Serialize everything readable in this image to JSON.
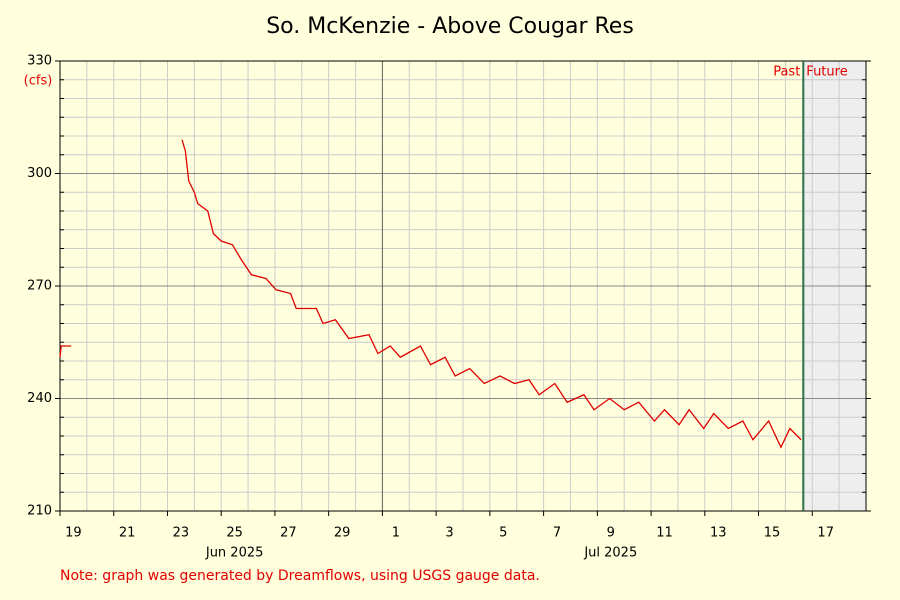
{
  "chart_data": {
    "type": "line",
    "title": "So. McKenzie - Above Cougar Res",
    "y_label": "(cfs)",
    "note": "Note: graph was generated by Dreamflows, using USGS gauge data.",
    "annotation_past": "Past",
    "annotation_future": "Future",
    "now": "2025-07-16T16:00",
    "xlim": [
      "2025-06-19T00:00",
      "2025-07-19T00:00"
    ],
    "xticks": [
      {
        "value": "2025-06-19",
        "label": "19"
      },
      {
        "value": "2025-06-21",
        "label": "21"
      },
      {
        "value": "2025-06-23",
        "label": "23"
      },
      {
        "value": "2025-06-25",
        "label": "25"
      },
      {
        "value": "2025-06-27",
        "label": "27"
      },
      {
        "value": "2025-06-29",
        "label": "29"
      },
      {
        "value": "2025-07-01",
        "label": "1"
      },
      {
        "value": "2025-07-03",
        "label": "3"
      },
      {
        "value": "2025-07-05",
        "label": "5"
      },
      {
        "value": "2025-07-07",
        "label": "7"
      },
      {
        "value": "2025-07-09",
        "label": "9"
      },
      {
        "value": "2025-07-11",
        "label": "11"
      },
      {
        "value": "2025-07-13",
        "label": "13"
      },
      {
        "value": "2025-07-15",
        "label": "15"
      },
      {
        "value": "2025-07-17",
        "label": "17"
      }
    ],
    "month_labels": [
      {
        "value": "2025-06-25",
        "label": "Jun 2025"
      },
      {
        "value": "2025-07-09",
        "label": "Jul 2025"
      }
    ],
    "ylim": [
      210,
      330
    ],
    "yticks": [
      210,
      240,
      270,
      300,
      330
    ],
    "grid": true,
    "series": [
      {
        "name": "Flow",
        "color": "#e00000",
        "x": [
          "2025-06-19T00:00",
          "2025-06-19T01:00",
          "2025-06-19T10:00",
          "2025-06-23T12:00",
          "2025-06-23T13:00",
          "2025-06-23T16:00",
          "2025-06-23T19:00",
          "2025-06-24T00:00",
          "2025-06-24T03:00",
          "2025-06-24T12:00",
          "2025-06-24T17:00",
          "2025-06-25T00:00",
          "2025-06-25T10:00",
          "2025-06-25T18:00",
          "2025-06-26T03:00",
          "2025-06-26T16:00",
          "2025-06-27T01:00",
          "2025-06-27T14:00",
          "2025-06-27T19:00",
          "2025-06-28T13:00",
          "2025-06-28T19:00",
          "2025-06-29T06:00",
          "2025-06-29T18:00",
          "2025-06-30T12:00",
          "2025-06-30T20:00",
          "2025-07-01T07:00",
          "2025-07-01T16:00",
          "2025-07-02T10:00",
          "2025-07-02T19:00",
          "2025-07-03T08:00",
          "2025-07-03T17:00",
          "2025-07-04T06:00",
          "2025-07-04T19:00",
          "2025-07-05T09:00",
          "2025-07-05T22:00",
          "2025-07-06T11:00",
          "2025-07-06T20:00",
          "2025-07-07T10:00",
          "2025-07-07T21:00",
          "2025-07-08T12:00",
          "2025-07-08T21:00",
          "2025-07-09T11:00",
          "2025-07-10T00:00",
          "2025-07-10T13:00",
          "2025-07-11T03:00",
          "2025-07-11T12:00",
          "2025-07-12T01:00",
          "2025-07-12T10:00",
          "2025-07-12T23:00",
          "2025-07-13T08:00",
          "2025-07-13T21:00",
          "2025-07-14T10:00",
          "2025-07-14T19:00",
          "2025-07-15T09:00",
          "2025-07-15T20:00",
          "2025-07-16T04:00",
          "2025-07-16T14:00"
        ],
        "values": [
          251,
          254,
          254,
          null,
          309,
          306,
          298,
          295,
          292,
          290,
          284,
          282,
          281,
          277,
          273,
          272,
          269,
          268,
          264,
          264,
          260,
          261,
          256,
          257,
          252,
          254,
          251,
          254,
          249,
          251,
          246,
          248,
          244,
          246,
          244,
          245,
          241,
          244,
          239,
          241,
          237,
          240,
          237,
          239,
          234,
          237,
          233,
          237,
          232,
          236,
          232,
          234,
          229,
          234,
          227,
          232,
          229
        ]
      }
    ]
  }
}
